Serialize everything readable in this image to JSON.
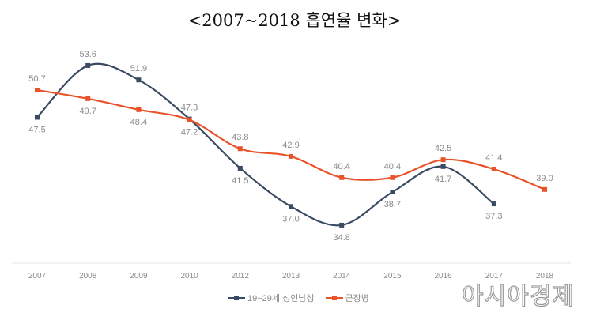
{
  "title": "<2007~2018 흡연율 변화>",
  "watermark": "아시아경제",
  "chart_data": {
    "type": "line",
    "title": "<2007~2018 흡연율 변화>",
    "categories": [
      "2007",
      "2008",
      "2009",
      "2010",
      "2012",
      "2013",
      "2014",
      "2015",
      "2016",
      "2017",
      "2018"
    ],
    "ylim": [
      30,
      55
    ],
    "grid": false,
    "legend": "bottom",
    "smooth": true,
    "series": [
      {
        "name": "19~29세 성인남성",
        "color": "#3a4a63",
        "values": [
          47.5,
          53.6,
          51.9,
          47.3,
          41.5,
          37.0,
          34.8,
          38.7,
          41.7,
          37.3,
          null
        ],
        "label_pos": [
          "below",
          "above",
          "above",
          "above",
          "below",
          "below",
          "below",
          "below",
          "below",
          "below",
          null
        ]
      },
      {
        "name": "군장병",
        "color": "#e8532a",
        "values": [
          50.7,
          49.7,
          48.4,
          47.2,
          43.8,
          42.9,
          40.4,
          40.4,
          42.5,
          41.4,
          39.0
        ],
        "label_pos": [
          "above",
          "below",
          "below",
          "below",
          "above",
          "above",
          "above",
          "above",
          "above",
          "above",
          "above"
        ]
      }
    ]
  }
}
